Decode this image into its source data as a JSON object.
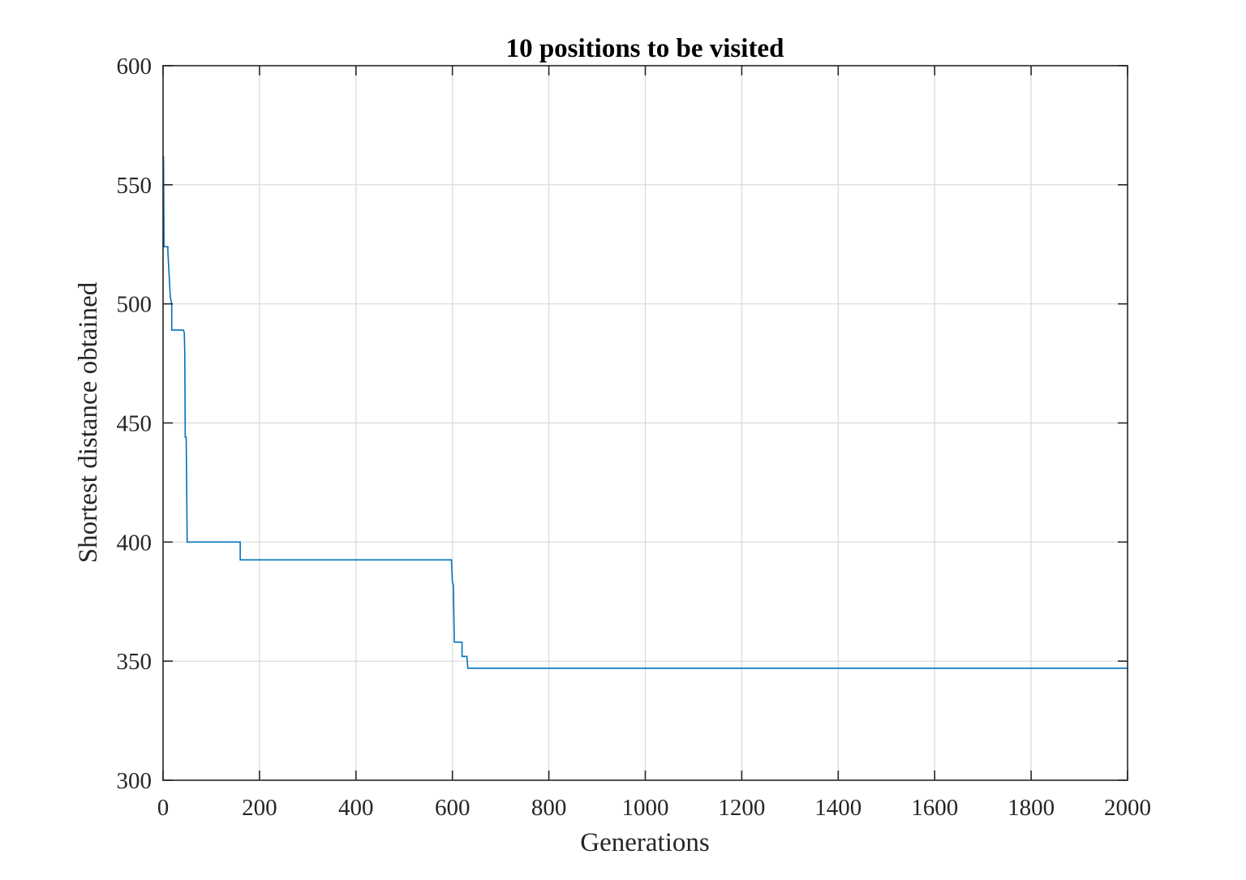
{
  "chart_data": {
    "type": "line",
    "title": "10 positions to be visited",
    "xlabel": "Generations",
    "ylabel": "Shortest distance obtained",
    "xlim": [
      0,
      2000
    ],
    "ylim": [
      300,
      600
    ],
    "xticks": [
      0,
      200,
      400,
      600,
      800,
      1000,
      1200,
      1400,
      1600,
      1800,
      2000
    ],
    "yticks": [
      300,
      350,
      400,
      450,
      500,
      550,
      600
    ],
    "grid": true,
    "line_color": "#0072BD",
    "series": [
      {
        "points": [
          [
            1,
            562
          ],
          [
            2,
            524
          ],
          [
            10,
            524
          ],
          [
            10,
            522
          ],
          [
            15,
            503
          ],
          [
            18,
            500
          ],
          [
            18,
            489
          ],
          [
            42,
            489
          ],
          [
            44,
            488
          ],
          [
            45,
            480
          ],
          [
            46,
            444
          ],
          [
            48,
            444
          ],
          [
            50,
            400
          ],
          [
            160,
            400
          ],
          [
            160,
            392.5
          ],
          [
            598,
            392.5
          ],
          [
            600,
            383
          ],
          [
            602,
            382
          ],
          [
            604,
            358
          ],
          [
            620,
            358
          ],
          [
            620,
            352
          ],
          [
            630,
            352
          ],
          [
            632,
            347
          ],
          [
            2000,
            347
          ]
        ]
      }
    ]
  }
}
